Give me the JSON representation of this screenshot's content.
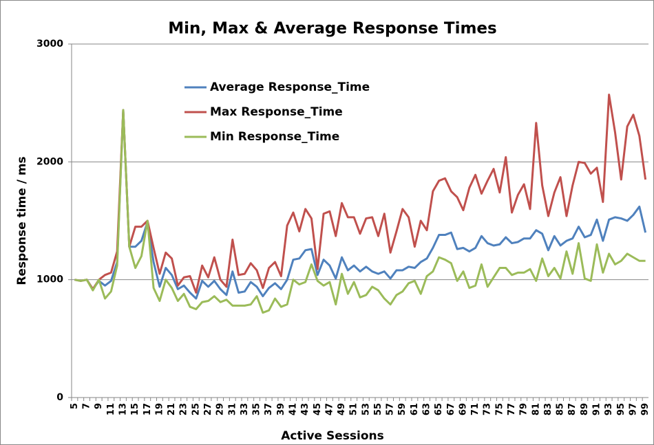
{
  "chart_data": {
    "type": "line",
    "title": "Min, Max & Average Response Times",
    "x_label": "Active Sessions",
    "y_label": "Response time / ms",
    "categories": [
      5,
      null,
      7,
      null,
      9,
      null,
      11,
      null,
      13,
      null,
      15,
      null,
      17,
      null,
      19,
      null,
      21,
      null,
      23,
      null,
      25,
      null,
      27,
      null,
      29,
      null,
      31,
      null,
      33,
      null,
      35,
      null,
      37,
      null,
      39,
      null,
      41,
      null,
      43,
      null,
      45,
      null,
      47,
      null,
      49,
      null,
      51,
      null,
      53,
      null,
      55,
      null,
      57,
      null,
      59,
      null,
      61,
      null,
      63,
      null,
      65,
      null,
      67,
      null,
      69,
      null,
      71,
      null,
      73,
      null,
      75,
      null,
      77,
      null,
      79,
      null,
      81,
      null,
      83,
      null,
      85,
      null,
      87,
      null,
      89,
      null,
      91,
      null,
      93,
      null,
      95,
      null,
      97,
      null,
      99
    ],
    "ylim": [
      0,
      3000
    ],
    "yticks": [
      0,
      1000,
      2000,
      3000
    ],
    "grid": true,
    "legend": "upper left",
    "series": [
      {
        "name": "Average Response_Time",
        "color": "#4f81bd",
        "values": [
          1000,
          990,
          1000,
          920,
          990,
          950,
          990,
          1150,
          2440,
          1280,
          1280,
          1330,
          1490,
          1150,
          940,
          1100,
          1040,
          920,
          950,
          890,
          840,
          990,
          940,
          990,
          920,
          870,
          1070,
          890,
          900,
          980,
          940,
          860,
          930,
          970,
          920,
          1000,
          1170,
          1180,
          1250,
          1260,
          1040,
          1170,
          1120,
          1010,
          1190,
          1080,
          1120,
          1070,
          1110,
          1070,
          1050,
          1070,
          1010,
          1080,
          1080,
          1110,
          1100,
          1150,
          1180,
          1270,
          1380,
          1380,
          1400,
          1260,
          1270,
          1240,
          1270,
          1370,
          1310,
          1290,
          1300,
          1360,
          1310,
          1320,
          1350,
          1350,
          1420,
          1390,
          1250,
          1370,
          1290,
          1330,
          1350,
          1450,
          1360,
          1380,
          1510,
          1330,
          1510,
          1530,
          1520,
          1500,
          1550,
          1620,
          1400
        ]
      },
      {
        "name": "Max Response_Time",
        "color": "#c0504d",
        "values": [
          1000,
          990,
          1000,
          920,
          1000,
          1040,
          1060,
          1240,
          2440,
          1280,
          1450,
          1450,
          1500,
          1270,
          1050,
          1230,
          1180,
          950,
          1020,
          1030,
          890,
          1120,
          1020,
          1190,
          1000,
          940,
          1340,
          1040,
          1050,
          1140,
          1080,
          930,
          1100,
          1150,
          1030,
          1460,
          1570,
          1410,
          1600,
          1520,
          1090,
          1560,
          1580,
          1370,
          1650,
          1530,
          1530,
          1390,
          1520,
          1530,
          1370,
          1560,
          1230,
          1410,
          1600,
          1530,
          1280,
          1500,
          1420,
          1750,
          1840,
          1860,
          1750,
          1700,
          1590,
          1780,
          1890,
          1730,
          1840,
          1940,
          1740,
          2040,
          1570,
          1720,
          1810,
          1600,
          2330,
          1800,
          1540,
          1740,
          1870,
          1540,
          1800,
          2000,
          1990,
          1900,
          1950,
          1660,
          2570,
          2250,
          1850,
          2300,
          2400,
          2220,
          1850
        ]
      },
      {
        "name": "Min Response_Time",
        "color": "#9bbb59",
        "values": [
          1000,
          990,
          1000,
          910,
          1000,
          840,
          900,
          1120,
          2440,
          1280,
          1100,
          1200,
          1500,
          930,
          820,
          1000,
          930,
          820,
          880,
          770,
          750,
          810,
          820,
          860,
          810,
          830,
          780,
          780,
          780,
          790,
          860,
          720,
          740,
          840,
          770,
          790,
          1000,
          960,
          980,
          1130,
          990,
          950,
          980,
          790,
          1050,
          880,
          980,
          850,
          870,
          940,
          910,
          840,
          790,
          870,
          900,
          970,
          990,
          880,
          1030,
          1070,
          1190,
          1170,
          1140,
          990,
          1070,
          930,
          950,
          1130,
          940,
          1020,
          1100,
          1100,
          1040,
          1060,
          1060,
          1090,
          990,
          1180,
          1030,
          1100,
          1010,
          1240,
          1050,
          1310,
          1010,
          990,
          1300,
          1060,
          1220,
          1130,
          1160,
          1220,
          1190,
          1160,
          1160
        ]
      }
    ]
  }
}
